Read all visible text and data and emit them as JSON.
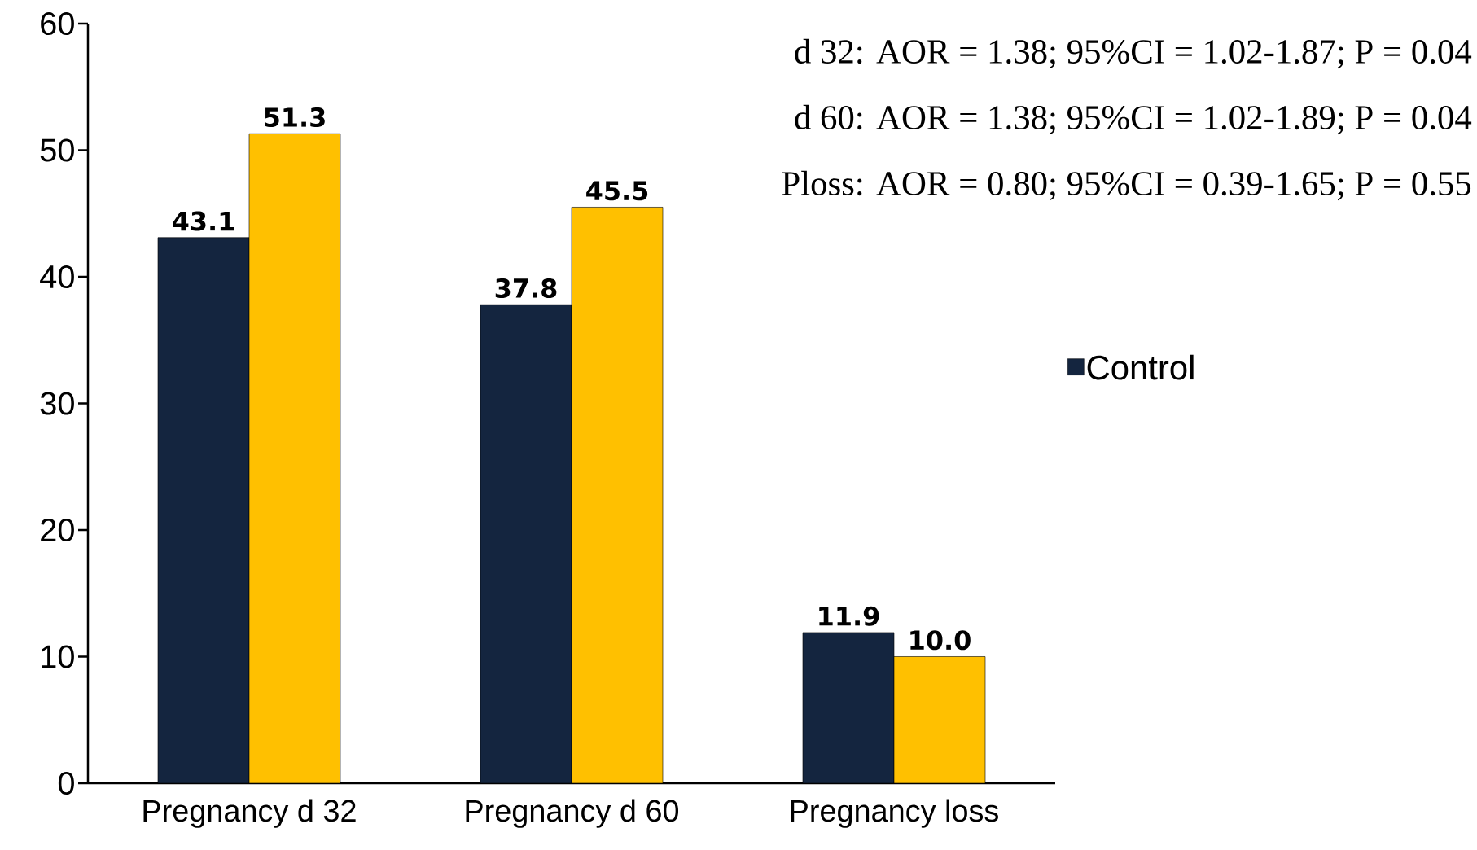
{
  "chart_data": {
    "type": "bar",
    "categories": [
      "Pregnancy d 32",
      "Pregnancy d 60",
      "Pregnancy loss"
    ],
    "series": [
      {
        "name": "Control",
        "color": "#14253f",
        "values": [
          43.1,
          37.8,
          11.9
        ],
        "value_labels": [
          "43.1",
          "37.8",
          "11.9"
        ]
      },
      {
        "color": "#ffc000",
        "values": [
          51.3,
          45.5,
          10.0
        ],
        "value_labels": [
          "51.3",
          "45.5",
          "10.0"
        ]
      }
    ],
    "ylim": [
      0,
      60
    ],
    "yticks": [
      0,
      10,
      20,
      30,
      40,
      50,
      60
    ],
    "grid": false,
    "legend": "right",
    "annotations": [
      "d 32: AOR = 1.38; 95%CI = 1.02-1.87; P = 0.04",
      "d 60: AOR = 1.38; 95%CI = 1.02-1.89; P = 0.04",
      "Ploss: AOR = 0.80; 95%CI = 0.39-1.65; P = 0.55"
    ]
  }
}
